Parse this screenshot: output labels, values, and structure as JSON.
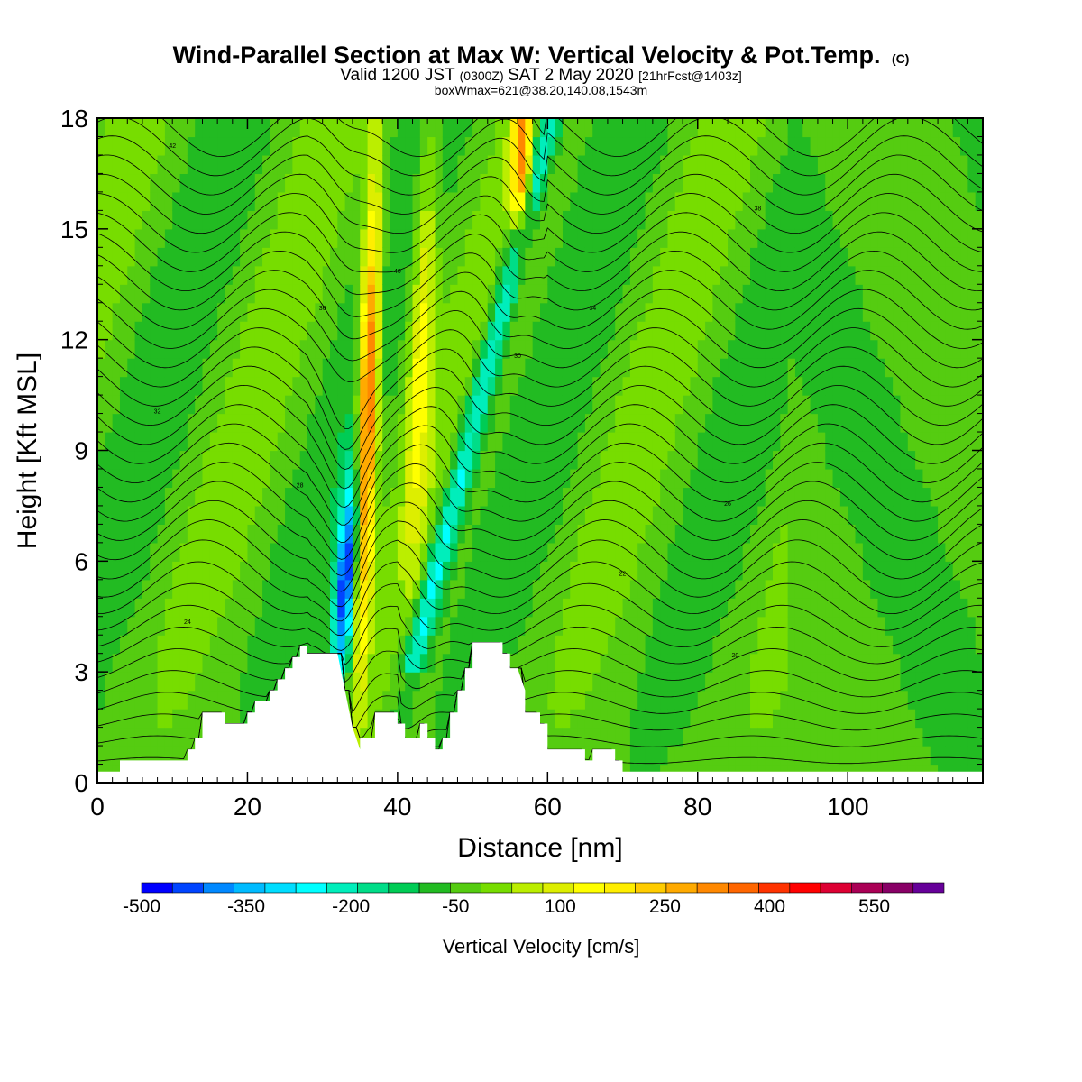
{
  "title": {
    "line1": "Wind-Parallel Section at Max W: Vertical Velocity & Pot.Temp.",
    "line1_mark": "(C)",
    "line2_a": "Valid 1200 JST ",
    "line2_b": "(0300Z)",
    "line2_c": " SAT 2 May 2020 ",
    "line2_d": "[21hrFcst@1403z]",
    "line3": "boxWmax=621@38.20,140.08,1543m"
  },
  "chart_data": {
    "type": "heatmap",
    "xlabel": "Distance [nm]",
    "ylabel": "Height [Kft MSL]",
    "xlim": [
      0,
      118
    ],
    "ylim": [
      0,
      18
    ],
    "xticks": [
      0,
      20,
      40,
      60,
      80,
      100
    ],
    "yticks": [
      0,
      3,
      6,
      9,
      12,
      15,
      18
    ],
    "terrain_kft": [
      [
        0,
        0.3
      ],
      [
        3,
        0.3
      ],
      [
        3,
        0.6
      ],
      [
        12,
        0.6
      ],
      [
        12,
        0.9
      ],
      [
        13,
        0.9
      ],
      [
        13,
        1.2
      ],
      [
        14,
        1.2
      ],
      [
        14,
        1.9
      ],
      [
        17,
        1.9
      ],
      [
        17,
        1.6
      ],
      [
        20,
        1.6
      ],
      [
        20,
        1.9
      ],
      [
        21,
        1.9
      ],
      [
        21,
        2.2
      ],
      [
        23,
        2.2
      ],
      [
        23,
        2.5
      ],
      [
        24,
        2.5
      ],
      [
        24,
        2.8
      ],
      [
        25,
        2.8
      ],
      [
        25,
        3.1
      ],
      [
        26,
        3.1
      ],
      [
        26,
        3.4
      ],
      [
        27,
        3.4
      ],
      [
        27,
        3.7
      ],
      [
        28,
        3.7
      ],
      [
        28,
        3.5
      ],
      [
        32,
        3.5
      ],
      [
        33,
        2.5
      ],
      [
        34,
        1.5
      ],
      [
        35,
        0.9
      ],
      [
        35,
        1.2
      ],
      [
        37,
        1.2
      ],
      [
        37,
        1.9
      ],
      [
        40,
        1.9
      ],
      [
        40,
        1.6
      ],
      [
        41,
        1.6
      ],
      [
        41,
        1.2
      ],
      [
        43,
        1.2
      ],
      [
        43,
        1.6
      ],
      [
        44,
        1.6
      ],
      [
        44,
        1.2
      ],
      [
        45,
        1.2
      ],
      [
        45,
        0.9
      ],
      [
        46,
        0.9
      ],
      [
        46,
        1.2
      ],
      [
        47,
        1.2
      ],
      [
        47,
        1.9
      ],
      [
        48,
        1.9
      ],
      [
        48,
        2.5
      ],
      [
        49,
        2.5
      ],
      [
        49,
        3.1
      ],
      [
        50,
        3.1
      ],
      [
        50,
        3.8
      ],
      [
        54,
        3.8
      ],
      [
        54,
        3.5
      ],
      [
        55,
        3.5
      ],
      [
        55,
        3.1
      ],
      [
        56,
        3.1
      ],
      [
        57,
        2.5
      ],
      [
        57,
        1.9
      ],
      [
        59,
        1.9
      ],
      [
        59,
        1.6
      ],
      [
        60,
        1.6
      ],
      [
        60,
        0.9
      ],
      [
        65,
        0.9
      ],
      [
        65,
        0.6
      ],
      [
        66,
        0.6
      ],
      [
        66,
        0.9
      ],
      [
        69,
        0.9
      ],
      [
        69,
        0.6
      ],
      [
        70,
        0.6
      ],
      [
        70,
        0.3
      ],
      [
        118,
        0.3
      ]
    ],
    "colorbar": {
      "title": "Vertical Velocity [cm/s]",
      "ticks": [
        "-500",
        "-350",
        "-200",
        "-50",
        "100",
        "250",
        "400",
        "550"
      ],
      "range": [
        -500,
        650
      ],
      "step": 50,
      "colors": [
        "#0000ff",
        "#0044ff",
        "#0088ff",
        "#00bbff",
        "#00ddff",
        "#00ffff",
        "#00eebb",
        "#00dd88",
        "#00cc55",
        "#22bb22",
        "#55cc11",
        "#77dd00",
        "#bbee00",
        "#ddee00",
        "#ffff00",
        "#ffee00",
        "#ffcc00",
        "#ffaa00",
        "#ff8800",
        "#ff6600",
        "#ff3300",
        "#ff0000",
        "#dd0033",
        "#aa0055",
        "#880066",
        "#660099"
      ]
    },
    "contour_labels": [
      "42",
      "40",
      "38",
      "36",
      "34",
      "32",
      "30",
      "28",
      "26",
      "24",
      "22",
      "20"
    ]
  }
}
